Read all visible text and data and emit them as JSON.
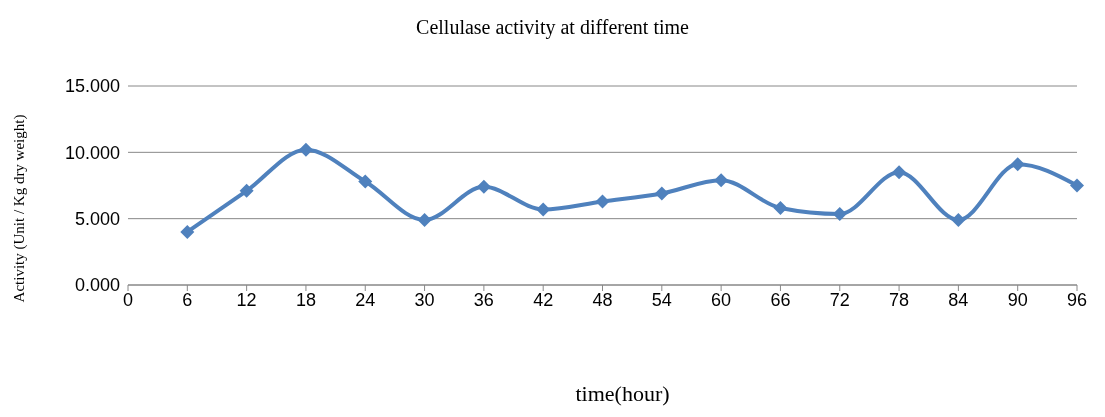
{
  "chart_data": {
    "type": "line",
    "title": "Cellulase activity at different time",
    "xlabel": "time(hour)",
    "ylabel": "Activity (Unit / Kg dry weight)",
    "categories": [
      "0",
      "6",
      "12",
      "18",
      "24",
      "30",
      "36",
      "42",
      "48",
      "54",
      "60",
      "66",
      "72",
      "78",
      "84",
      "90",
      "96"
    ],
    "series": [
      {
        "color": "#4f81bd",
        "values": [
          null,
          4.0,
          7.1,
          10.2,
          7.8,
          4.9,
          7.4,
          5.7,
          6.3,
          6.9,
          7.9,
          5.8,
          5.35,
          8.5,
          4.9,
          9.1,
          7.5
        ]
      }
    ],
    "ylim": [
      0,
      15
    ],
    "yticks": [
      {
        "value": 0,
        "label": "0.000"
      },
      {
        "value": 5,
        "label": "5.000"
      },
      {
        "value": 10,
        "label": "10.000"
      },
      {
        "value": 15,
        "label": "15.000"
      }
    ],
    "grid": "y",
    "marker": "diamond",
    "line_style": "solid",
    "legend": false
  }
}
